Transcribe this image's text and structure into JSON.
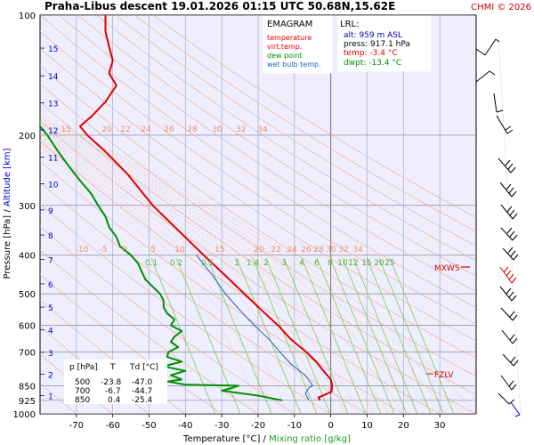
{
  "header": {
    "title": "Praha-Libus   descent   19.01.2026 01:15 UTC  50.68N,15.62E",
    "copyright": "CHMI © 2026"
  },
  "legend": {
    "title": "EMAGRAM",
    "items": [
      {
        "label": "temperature",
        "color": "#e00000"
      },
      {
        "label": "virt.temp.",
        "color": "#e00000"
      },
      {
        "label": "dew point",
        "color": "#009000"
      },
      {
        "label": "wet bulb temp.",
        "color": "#2060c0"
      }
    ]
  },
  "lrl": {
    "title": "LRL:",
    "alt": "alt: 959 m ASL",
    "press": "press: 917.1 hPa",
    "temp": "temp: -3.4 °C",
    "dwpt": "dwpt: -13.4 °C",
    "colors": {
      "alt": "#0000c0",
      "press": "#000000",
      "temp": "#e00000",
      "dwpt": "#009000"
    }
  },
  "table": {
    "headers": [
      "p [hPa]",
      "T",
      "Td [°C]"
    ],
    "rows": [
      [
        "500",
        "-23.8",
        "-47.0"
      ],
      [
        "700",
        "-6.7",
        "-44.7"
      ],
      [
        "850",
        "0.4",
        "-25.4"
      ]
    ]
  },
  "axes": {
    "xlabel_left": "Temperature [°C]",
    "xlabel_sep": "/",
    "xlabel_right": "Mixing ratio [g/kg]",
    "ylabel_left": "Pressure [hPa]",
    "ylabel_sep": "/",
    "ylabel_right": "Altitude [km]"
  },
  "levels": {
    "mxws": "MXWS",
    "fzlv": "FZLV"
  },
  "chart_data": {
    "type": "line",
    "title": "Praha-Libus   descent   19.01.2026 01:15 UTC  50.68N,15.62E",
    "xlabel": "Temperature [°C]",
    "ylabel": "Pressure [hPa]",
    "xlim": [
      -80,
      40
    ],
    "ylim": [
      1000,
      100
    ],
    "yscale": "log",
    "x_ticks": [
      -70,
      -60,
      -50,
      -40,
      -30,
      -20,
      -10,
      0,
      10,
      20,
      30
    ],
    "pressure_ticks": [
      100,
      200,
      300,
      400,
      500,
      600,
      700,
      850,
      925,
      1000
    ],
    "altitude_ticks_km": [
      1,
      2,
      3,
      4,
      5,
      6,
      7,
      8,
      9,
      10,
      11,
      12,
      13,
      14,
      15
    ],
    "dry_adiabat_labels": [
      "-10",
      "-5",
      "0",
      "5",
      "10",
      "15",
      "20",
      "22",
      "24",
      "26",
      "28",
      "30",
      "32",
      "34"
    ],
    "upper_adiabat_labels": [
      "15",
      "20",
      "22",
      "24",
      "26",
      "28",
      "30",
      "32",
      "34"
    ],
    "mixing_ratio_labels": [
      "0.1",
      "0.2",
      "0.5",
      "1",
      "1.4",
      "2",
      "3",
      "4",
      "6",
      "8",
      "10",
      "12",
      "15",
      "20",
      "25"
    ],
    "grid": true,
    "series": [
      {
        "name": "temperature",
        "color": "#e00000",
        "points": [
          [
            925,
            -3
          ],
          [
            910,
            -3.4
          ],
          [
            880,
            0.2
          ],
          [
            850,
            0.4
          ],
          [
            820,
            0
          ],
          [
            780,
            -2
          ],
          [
            740,
            -4
          ],
          [
            700,
            -6.7
          ],
          [
            650,
            -11
          ],
          [
            600,
            -14.5
          ],
          [
            550,
            -19
          ],
          [
            500,
            -23.8
          ],
          [
            450,
            -29
          ],
          [
            400,
            -35
          ],
          [
            350,
            -41.5
          ],
          [
            300,
            -49
          ],
          [
            250,
            -56
          ],
          [
            220,
            -62
          ],
          [
            200,
            -67
          ],
          [
            190,
            -69
          ],
          [
            180,
            -66
          ],
          [
            165,
            -62
          ],
          [
            150,
            -59
          ],
          [
            140,
            -61
          ],
          [
            130,
            -60
          ],
          [
            120,
            -61
          ],
          [
            110,
            -62
          ],
          [
            100,
            -62
          ]
        ]
      },
      {
        "name": "dew point",
        "color": "#009000",
        "points": [
          [
            925,
            -13.4
          ],
          [
            900,
            -20
          ],
          [
            875,
            -30
          ],
          [
            860,
            -27
          ],
          [
            850,
            -25.4
          ],
          [
            845,
            -40
          ],
          [
            830,
            -45
          ],
          [
            820,
            -41
          ],
          [
            800,
            -44
          ],
          [
            780,
            -40
          ],
          [
            760,
            -46
          ],
          [
            740,
            -41
          ],
          [
            720,
            -45
          ],
          [
            700,
            -44.7
          ],
          [
            680,
            -42
          ],
          [
            660,
            -44
          ],
          [
            640,
            -43
          ],
          [
            620,
            -41
          ],
          [
            600,
            -44
          ],
          [
            580,
            -43
          ],
          [
            560,
            -45
          ],
          [
            540,
            -46
          ],
          [
            520,
            -46
          ],
          [
            500,
            -47
          ],
          [
            480,
            -49
          ],
          [
            460,
            -51
          ],
          [
            440,
            -52
          ],
          [
            420,
            -53
          ],
          [
            400,
            -55
          ],
          [
            380,
            -58
          ],
          [
            360,
            -59
          ],
          [
            340,
            -61
          ],
          [
            320,
            -62
          ],
          [
            300,
            -64
          ],
          [
            280,
            -66
          ],
          [
            260,
            -69
          ],
          [
            240,
            -72
          ],
          [
            220,
            -75
          ],
          [
            200,
            -78
          ],
          [
            190,
            -80
          ]
        ]
      },
      {
        "name": "wet bulb temp.",
        "color": "#2060c0",
        "points": [
          [
            925,
            -6
          ],
          [
            890,
            -7
          ],
          [
            860,
            -6
          ],
          [
            850,
            -5
          ],
          [
            800,
            -7
          ],
          [
            750,
            -11
          ],
          [
            700,
            -14
          ],
          [
            650,
            -17
          ],
          [
            600,
            -21
          ],
          [
            550,
            -25
          ],
          [
            500,
            -29
          ],
          [
            450,
            -32.5
          ],
          [
            400,
            -37
          ]
        ]
      }
    ]
  }
}
